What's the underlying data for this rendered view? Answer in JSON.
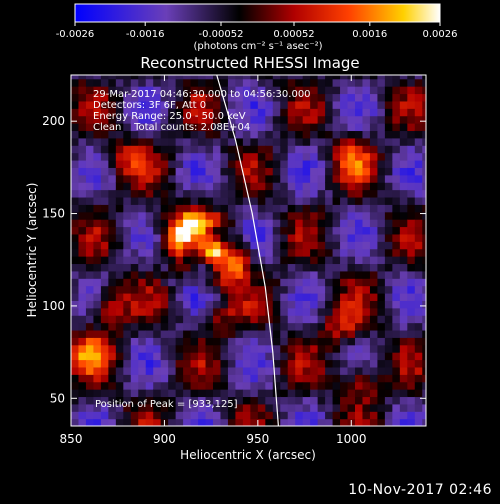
{
  "chart_data": {
    "type": "heatmap",
    "title": "Reconstructed RHESSI Image",
    "xlabel": "Heliocentric X (arcsec)",
    "ylabel": "Heliocentric Y (arcsec)",
    "x_ticks": [
      850,
      900,
      950,
      1000
    ],
    "y_ticks": [
      50,
      100,
      150,
      200
    ],
    "xlim": [
      850,
      1040
    ],
    "ylim": [
      35,
      225
    ],
    "colorbar": {
      "ticks": [
        "-0.0026",
        "-0.0016",
        "-0.00052",
        "0.00052",
        "0.0016",
        "0.0026"
      ],
      "range": [
        -0.0026,
        0.0026
      ],
      "unit_label": "(photons cm⁻² s⁻¹ asec⁻²)",
      "colors": [
        "#0000ff",
        "#6a3fb8",
        "#000000",
        "#b00000",
        "#ff4000",
        "#ffd000",
        "#ffffff"
      ]
    },
    "annotations": [
      "29-Mar-2017 04:46:30.000 to 04:56:30.000",
      "Detectors: 3F 6F, Att 0",
      "Energy Range: 25.0 - 50.0 keV",
      "Clean    Total counts: 2.08E+04"
    ],
    "peak": {
      "x": 933,
      "y": 125,
      "label": "Position of Peak = [933,125]"
    },
    "limb_points": [
      [
        928,
        225
      ],
      [
        938,
        190
      ],
      [
        947,
        150
      ],
      [
        954,
        110
      ],
      [
        958,
        75
      ],
      [
        961,
        35
      ]
    ],
    "sources": [
      {
        "x": 933,
        "y": 125,
        "value": 0.0026
      },
      {
        "x": 915,
        "y": 145,
        "value": 0.0018
      },
      {
        "x": 905,
        "y": 138,
        "value": 0.0015
      },
      {
        "x": 870,
        "y": 100,
        "value": 0.0016
      },
      {
        "x": 860,
        "y": 75,
        "value": 0.0017
      },
      {
        "x": 1000,
        "y": 180,
        "value": 0.0014
      },
      {
        "x": 1005,
        "y": 60,
        "value": 0.0015
      },
      {
        "x": 995,
        "y": 90,
        "value": 0.0012
      },
      {
        "x": 880,
        "y": 180,
        "value": 0.0011
      },
      {
        "x": 930,
        "y": 95,
        "value": 0.001
      }
    ]
  },
  "footer": {
    "timestamp": "10-Nov-2017 02:46"
  }
}
